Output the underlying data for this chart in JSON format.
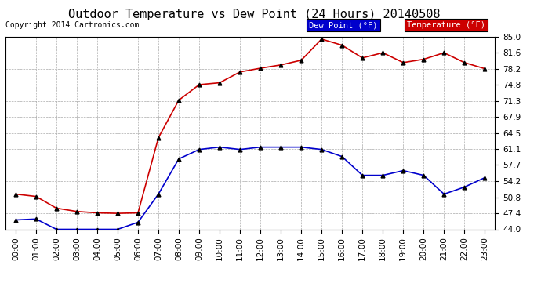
{
  "title": "Outdoor Temperature vs Dew Point (24 Hours) 20140508",
  "copyright": "Copyright 2014 Cartronics.com",
  "hours": [
    "00:00",
    "01:00",
    "02:00",
    "03:00",
    "04:00",
    "05:00",
    "06:00",
    "07:00",
    "08:00",
    "09:00",
    "10:00",
    "11:00",
    "12:00",
    "13:00",
    "14:00",
    "15:00",
    "16:00",
    "17:00",
    "18:00",
    "19:00",
    "20:00",
    "21:00",
    "22:00",
    "23:00"
  ],
  "temperature": [
    51.5,
    51.0,
    48.5,
    47.8,
    47.5,
    47.4,
    47.5,
    63.5,
    71.5,
    74.8,
    75.2,
    77.5,
    78.3,
    79.0,
    80.0,
    84.5,
    83.2,
    80.5,
    81.6,
    79.5,
    80.2,
    81.6,
    79.5,
    78.2
  ],
  "dew_point": [
    46.0,
    46.2,
    44.0,
    44.0,
    44.0,
    44.0,
    45.5,
    51.5,
    59.0,
    61.0,
    61.5,
    61.0,
    61.5,
    61.5,
    61.5,
    61.0,
    59.5,
    55.5,
    55.5,
    56.5,
    55.5,
    51.5,
    53.0,
    55.0
  ],
  "temp_color": "#cc0000",
  "dew_color": "#0000cc",
  "ylim": [
    44.0,
    85.0
  ],
  "yticks": [
    44.0,
    47.4,
    50.8,
    54.2,
    57.7,
    61.1,
    64.5,
    67.9,
    71.3,
    74.8,
    78.2,
    81.6,
    85.0
  ],
  "background_color": "#ffffff",
  "plot_bg_color": "#ffffff",
  "grid_color": "#aaaaaa",
  "legend_dew_bg": "#0000cc",
  "legend_temp_bg": "#cc0000",
  "title_fontsize": 11,
  "copyright_fontsize": 7,
  "tick_fontsize": 7.5,
  "marker": "^",
  "marker_size": 3.5,
  "linewidth": 1.2
}
